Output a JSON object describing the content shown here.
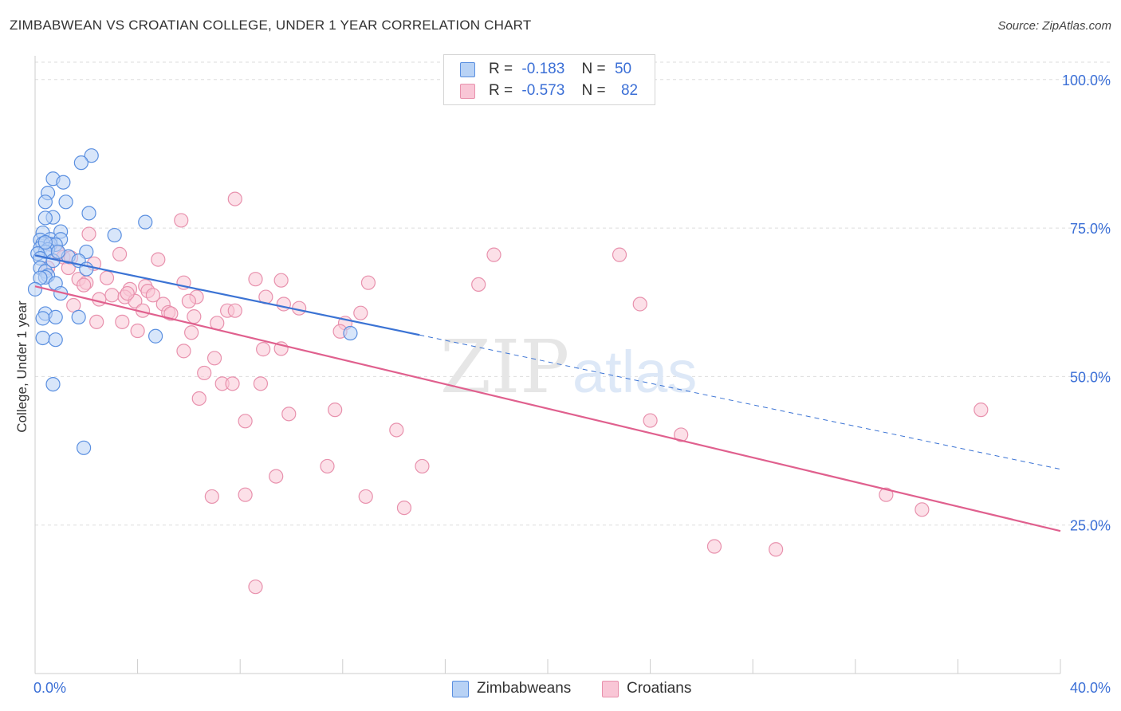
{
  "header": {
    "title": "ZIMBABWEAN VS CROATIAN COLLEGE, UNDER 1 YEAR CORRELATION CHART",
    "source": "Source: ZipAtlas.com"
  },
  "legend_top": {
    "rows": [
      {
        "r_label": "R =",
        "r_value": "-0.183",
        "n_label": "N =",
        "n_value": "50"
      },
      {
        "r_label": "R =",
        "r_value": "-0.573",
        "n_label": "N =",
        "n_value": "82"
      }
    ]
  },
  "legend_bottom": {
    "items": [
      {
        "label": "Zimbabweans"
      },
      {
        "label": "Croatians"
      }
    ]
  },
  "watermark": {
    "zip": "ZIP",
    "atlas": "atlas"
  },
  "colors": {
    "blue_fill": "#b8d2f5",
    "blue_stroke": "#5a8fe0",
    "blue_line": "#3b73d4",
    "pink_fill": "#f9c6d6",
    "pink_stroke": "#e891ad",
    "pink_line": "#e0608e",
    "grid": "#dddddd",
    "axis_label": "#3b6fd6"
  },
  "chart_data": {
    "type": "scatter",
    "title": "ZIMBABWEAN VS CROATIAN COLLEGE, UNDER 1 YEAR CORRELATION CHART",
    "xlabel": "",
    "ylabel": "College, Under 1 year",
    "xlim": [
      0,
      40
    ],
    "ylim": [
      0,
      104
    ],
    "x_tick_labels": [
      "0.0%",
      "40.0%"
    ],
    "y_ticks": [
      25,
      50,
      75,
      100
    ],
    "y_tick_labels": [
      "25.0%",
      "50.0%",
      "75.0%",
      "100.0%"
    ],
    "grid": true,
    "legend_position": "top-center",
    "series": [
      {
        "name": "Zimbabweans",
        "r": -0.183,
        "n": 50,
        "trend": {
          "x0": 0,
          "y0": 70.4,
          "x1": 15,
          "y1": 57.0,
          "dashed_to_x": 40,
          "dashed_to_y": 34.4
        },
        "points": [
          [
            2.2,
            87.2
          ],
          [
            1.8,
            86.0
          ],
          [
            0.7,
            83.3
          ],
          [
            1.1,
            82.7
          ],
          [
            0.5,
            80.9
          ],
          [
            0.4,
            79.4
          ],
          [
            1.2,
            79.4
          ],
          [
            2.1,
            77.5
          ],
          [
            0.7,
            76.8
          ],
          [
            0.4,
            76.7
          ],
          [
            4.3,
            76.0
          ],
          [
            0.3,
            74.2
          ],
          [
            1.0,
            74.4
          ],
          [
            3.1,
            73.8
          ],
          [
            0.6,
            73.1
          ],
          [
            0.2,
            73.0
          ],
          [
            1.0,
            73.1
          ],
          [
            0.3,
            72.4
          ],
          [
            0.6,
            72.3
          ],
          [
            0.8,
            72.2
          ],
          [
            0.2,
            71.6
          ],
          [
            0.5,
            71.4
          ],
          [
            0.4,
            71.0
          ],
          [
            2.0,
            71.0
          ],
          [
            0.1,
            70.7
          ],
          [
            1.3,
            70.2
          ],
          [
            0.2,
            69.9
          ],
          [
            1.7,
            69.5
          ],
          [
            0.7,
            69.5
          ],
          [
            0.2,
            68.3
          ],
          [
            2.0,
            68.1
          ],
          [
            0.4,
            67.7
          ],
          [
            0.5,
            67.0
          ],
          [
            0.4,
            66.7
          ],
          [
            0.2,
            66.6
          ],
          [
            0.8,
            65.7
          ],
          [
            0.0,
            64.7
          ],
          [
            1.0,
            64.0
          ],
          [
            0.4,
            60.6
          ],
          [
            0.3,
            59.8
          ],
          [
            0.8,
            60.0
          ],
          [
            1.7,
            60.0
          ],
          [
            0.3,
            56.5
          ],
          [
            0.8,
            56.2
          ],
          [
            4.7,
            56.8
          ],
          [
            12.3,
            57.3
          ],
          [
            0.7,
            48.7
          ],
          [
            1.9,
            38.0
          ],
          [
            0.4,
            72.6
          ],
          [
            0.9,
            71.0
          ]
        ]
      },
      {
        "name": "Croatians",
        "r": -0.573,
        "n": 82,
        "trend": {
          "x0": 0,
          "y0": 65.2,
          "x1": 40,
          "y1": 24.0
        },
        "points": [
          [
            7.8,
            79.9
          ],
          [
            5.7,
            76.3
          ],
          [
            2.1,
            74.0
          ],
          [
            0.6,
            72.2
          ],
          [
            0.9,
            70.8
          ],
          [
            3.3,
            70.6
          ],
          [
            17.9,
            70.5
          ],
          [
            22.8,
            70.5
          ],
          [
            1.1,
            70.1
          ],
          [
            1.4,
            70.0
          ],
          [
            4.8,
            69.7
          ],
          [
            2.3,
            69.0
          ],
          [
            8.6,
            66.4
          ],
          [
            9.6,
            66.2
          ],
          [
            13.0,
            65.8
          ],
          [
            5.8,
            65.8
          ],
          [
            1.7,
            66.4
          ],
          [
            2.0,
            65.8
          ],
          [
            17.3,
            65.5
          ],
          [
            3.7,
            64.7
          ],
          [
            4.3,
            65.2
          ],
          [
            4.4,
            64.4
          ],
          [
            3.0,
            63.7
          ],
          [
            1.9,
            65.4
          ],
          [
            4.6,
            63.7
          ],
          [
            6.3,
            63.4
          ],
          [
            9.0,
            63.4
          ],
          [
            3.5,
            63.4
          ],
          [
            2.5,
            63.0
          ],
          [
            3.9,
            62.7
          ],
          [
            5.0,
            62.2
          ],
          [
            9.7,
            62.2
          ],
          [
            6.0,
            62.7
          ],
          [
            1.5,
            62.0
          ],
          [
            10.3,
            61.5
          ],
          [
            23.6,
            62.2
          ],
          [
            7.5,
            61.1
          ],
          [
            7.8,
            61.1
          ],
          [
            4.2,
            61.1
          ],
          [
            5.2,
            60.8
          ],
          [
            5.3,
            60.6
          ],
          [
            12.7,
            60.7
          ],
          [
            2.4,
            59.2
          ],
          [
            3.4,
            59.2
          ],
          [
            7.1,
            59.0
          ],
          [
            12.1,
            59.0
          ],
          [
            11.9,
            57.6
          ],
          [
            4.0,
            57.7
          ],
          [
            6.1,
            57.4
          ],
          [
            8.9,
            54.6
          ],
          [
            9.6,
            54.7
          ],
          [
            5.8,
            54.3
          ],
          [
            7.0,
            53.1
          ],
          [
            6.6,
            50.6
          ],
          [
            7.3,
            48.8
          ],
          [
            7.7,
            48.8
          ],
          [
            8.8,
            48.8
          ],
          [
            6.4,
            46.3
          ],
          [
            11.7,
            44.4
          ],
          [
            9.9,
            43.7
          ],
          [
            8.2,
            42.5
          ],
          [
            24.0,
            42.6
          ],
          [
            14.1,
            41.0
          ],
          [
            25.2,
            40.2
          ],
          [
            36.9,
            44.4
          ],
          [
            11.4,
            34.9
          ],
          [
            15.1,
            34.9
          ],
          [
            9.4,
            33.2
          ],
          [
            6.9,
            29.8
          ],
          [
            8.2,
            30.1
          ],
          [
            12.9,
            29.8
          ],
          [
            14.4,
            27.9
          ],
          [
            33.2,
            30.1
          ],
          [
            34.6,
            27.6
          ],
          [
            26.5,
            21.4
          ],
          [
            28.9,
            20.9
          ],
          [
            8.6,
            14.6
          ],
          [
            0.5,
            68.3
          ],
          [
            2.8,
            66.6
          ],
          [
            1.3,
            68.3
          ],
          [
            6.2,
            60.1
          ],
          [
            3.6,
            64.0
          ]
        ]
      }
    ]
  }
}
